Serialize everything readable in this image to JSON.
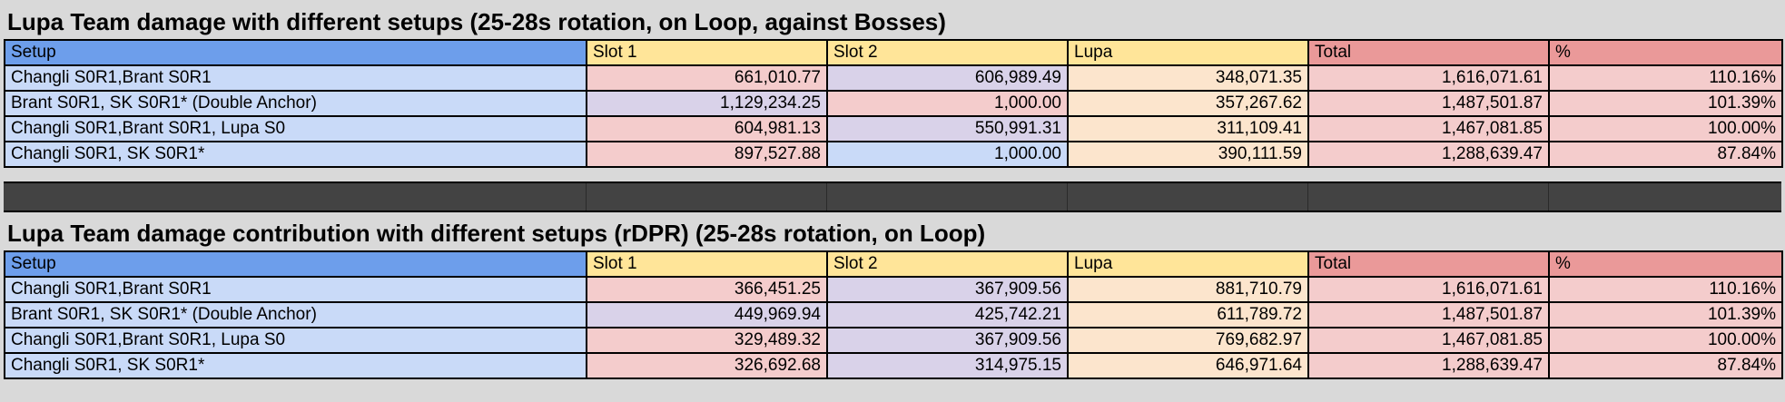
{
  "table1": {
    "title": "Lupa Team damage with different setups (25-28s rotation, on Loop, against Bosses)",
    "headers": [
      "Setup",
      "Slot 1",
      "Slot 2",
      "Lupa",
      "Total",
      "%"
    ],
    "rows": [
      [
        "Changli S0R1,Brant S0R1",
        "661,010.77",
        "606,989.49",
        "348,071.35",
        "1,616,071.61",
        "110.16%"
      ],
      [
        "Brant S0R1, SK S0R1* (Double Anchor)",
        "1,129,234.25",
        "1,000.00",
        "357,267.62",
        "1,487,501.87",
        "101.39%"
      ],
      [
        "Changli S0R1,Brant S0R1, Lupa S0",
        "604,981.13",
        "550,991.31",
        "311,109.41",
        "1,467,081.85",
        "100.00%"
      ],
      [
        "Changli S0R1, SK S0R1*",
        "897,527.88",
        "1,000.00",
        "390,111.59",
        "1,288,639.47",
        "87.84%"
      ]
    ]
  },
  "table2": {
    "title": "Lupa Team damage contribution with different setups (rDPR) (25-28s rotation, on Loop)",
    "headers": [
      "Setup",
      "Slot 1",
      "Slot 2",
      "Lupa",
      "Total",
      "%"
    ],
    "rows": [
      [
        "Changli S0R1,Brant S0R1",
        "366,451.25",
        "367,909.56",
        "881,710.79",
        "1,616,071.61",
        "110.16%"
      ],
      [
        "Brant S0R1, SK S0R1* (Double Anchor)",
        "449,969.94",
        "425,742.21",
        "611,789.72",
        "1,487,501.87",
        "101.39%"
      ],
      [
        "Changli S0R1,Brant S0R1, Lupa S0",
        "329,489.32",
        "367,909.56",
        "769,682.97",
        "1,467,081.85",
        "100.00%"
      ],
      [
        "Changli S0R1, SK S0R1*",
        "326,692.68",
        "314,975.15",
        "646,971.64",
        "1,288,639.47",
        "87.84%"
      ]
    ]
  },
  "colors": {
    "header_setup": "#6d9eeb",
    "header_slot": "#ffe599",
    "header_total": "#ea9999",
    "setup_cell": "#c9daf8",
    "slot1_cell": "#f4cccc",
    "slot2_cell": "#d9d2e9",
    "lupa_cell": "#fce5cd",
    "total_cell": "#f4cccc",
    "separator_band": "#434343",
    "background": "#d9d9d9"
  }
}
